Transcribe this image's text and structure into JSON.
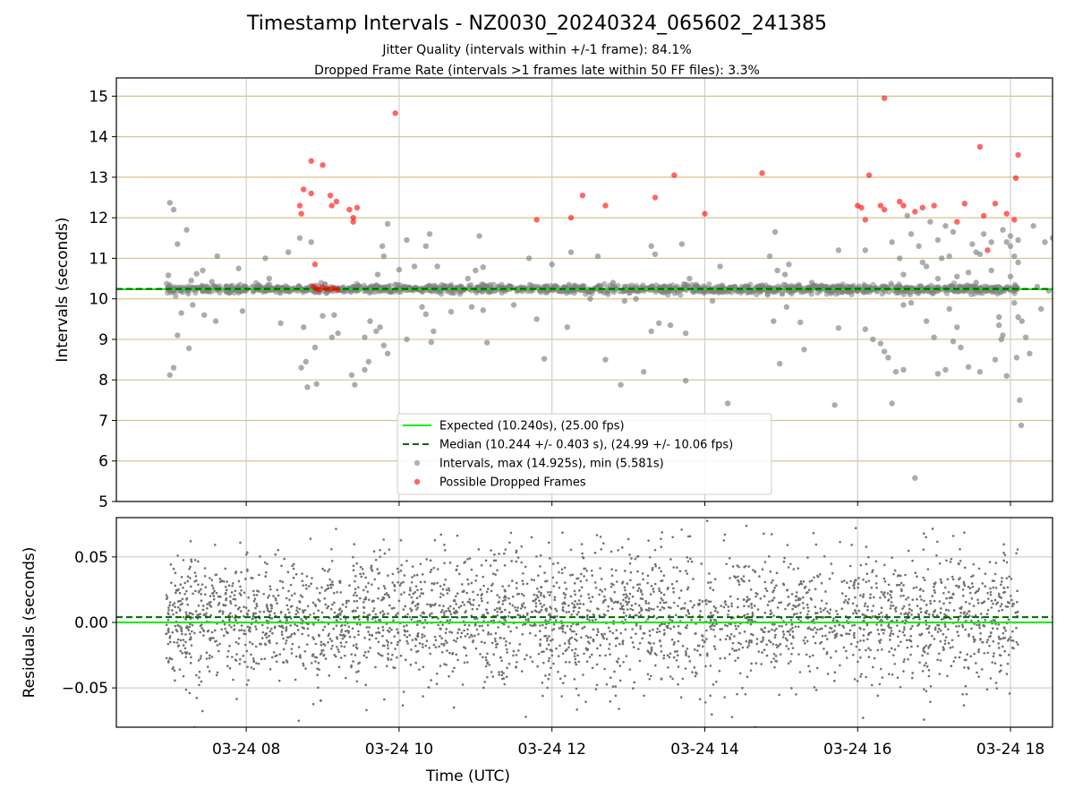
{
  "chart_data": [
    {
      "type": "scatter",
      "title": "Timestamp Intervals - NZ0030_20240324_065602_241385",
      "subtitle_lines": [
        "Jitter Quality (intervals within +/-1 frame): 84.1%",
        "Dropped Frame Rate (intervals >1 frames late within 50 FF files): 3.3%"
      ],
      "xlabel": "",
      "ylabel": "Intervals (seconds)",
      "ylim": [
        5,
        15.45
      ],
      "yticks": [
        5,
        6,
        7,
        8,
        9,
        10,
        11,
        12,
        13,
        14,
        15
      ],
      "xlim_hours": [
        6.3,
        18.55
      ],
      "xtick_hours": [
        8,
        10,
        12,
        14,
        16,
        18
      ],
      "grid": true,
      "legend": {
        "placement": "lower-center",
        "entries": [
          {
            "label": "Expected (10.240s), (25.00 fps)",
            "kind": "line",
            "color": "#00ee00"
          },
          {
            "label": "Median (10.244 +/- 0.403 s), (24.99 +/- 10.06 fps)",
            "kind": "dashed",
            "color": "#006400"
          },
          {
            "label": "Intervals, max (14.925s), min (5.581s)",
            "kind": "marker",
            "color": "#808080"
          },
          {
            "label": "Possible Dropped Frames",
            "kind": "marker",
            "color": "#ff0000"
          }
        ]
      },
      "expected": 10.24,
      "median": 10.244,
      "cluster_band": {
        "x_range_hours": [
          6.95,
          18.1
        ],
        "y": 10.24,
        "jitter": 0.05
      },
      "series": [
        {
          "name": "Intervals, max (14.925s), min (5.581s)",
          "color": "#808080",
          "points": [
            [
              7.0,
              12.37
            ],
            [
              7.05,
              12.2
            ],
            [
              6.98,
              10.58
            ],
            [
              7.1,
              11.35
            ],
            [
              7.22,
              11.7
            ],
            [
              7.28,
              10.45
            ],
            [
              7.35,
              10.62
            ],
            [
              7.43,
              10.7
            ],
            [
              7.55,
              10.42
            ],
            [
              7.62,
              11.05
            ],
            [
              7.05,
              8.3
            ],
            [
              7.0,
              8.12
            ],
            [
              7.1,
              9.1
            ],
            [
              7.15,
              9.65
            ],
            [
              7.3,
              9.85
            ],
            [
              7.45,
              9.6
            ],
            [
              7.6,
              9.45
            ],
            [
              7.25,
              8.78
            ],
            [
              7.95,
              9.7
            ],
            [
              7.9,
              10.75
            ],
            [
              8.25,
              11.0
            ],
            [
              8.3,
              10.5
            ],
            [
              8.45,
              9.4
            ],
            [
              8.55,
              11.15
            ],
            [
              8.7,
              11.5
            ],
            [
              8.75,
              9.3
            ],
            [
              8.72,
              8.3
            ],
            [
              8.78,
              8.45
            ],
            [
              8.8,
              7.82
            ],
            [
              8.85,
              11.4
            ],
            [
              8.9,
              8.8
            ],
            [
              8.92,
              7.9
            ],
            [
              9.0,
              9.58
            ],
            [
              9.12,
              9.05
            ],
            [
              9.15,
              9.6
            ],
            [
              9.2,
              9.15
            ],
            [
              9.38,
              8.12
            ],
            [
              9.42,
              7.88
            ],
            [
              9.55,
              8.25
            ],
            [
              9.6,
              8.45
            ],
            [
              9.55,
              9.05
            ],
            [
              9.62,
              9.45
            ],
            [
              9.7,
              9.2
            ],
            [
              9.75,
              9.3
            ],
            [
              9.72,
              10.6
            ],
            [
              9.8,
              11.05
            ],
            [
              9.78,
              11.3
            ],
            [
              9.85,
              11.85
            ],
            [
              9.8,
              8.85
            ],
            [
              9.85,
              8.65
            ],
            [
              9.95,
              10.35
            ],
            [
              10.0,
              10.72
            ],
            [
              10.1,
              11.45
            ],
            [
              10.2,
              10.8
            ],
            [
              10.35,
              11.3
            ],
            [
              10.4,
              11.6
            ],
            [
              10.5,
              10.8
            ],
            [
              10.1,
              9.0
            ],
            [
              10.3,
              9.8
            ],
            [
              10.35,
              9.62
            ],
            [
              10.45,
              9.2
            ],
            [
              10.42,
              8.93
            ],
            [
              10.68,
              9.68
            ],
            [
              10.9,
              10.5
            ],
            [
              10.95,
              9.8
            ],
            [
              11.0,
              10.7
            ],
            [
              11.1,
              10.78
            ],
            [
              11.1,
              9.72
            ],
            [
              11.05,
              11.55
            ],
            [
              11.15,
              8.92
            ],
            [
              11.5,
              9.85
            ],
            [
              11.7,
              11.0
            ],
            [
              11.8,
              9.5
            ],
            [
              11.9,
              8.52
            ],
            [
              12.0,
              10.85
            ],
            [
              12.15,
              10.2
            ],
            [
              12.2,
              9.3
            ],
            [
              12.25,
              11.15
            ],
            [
              12.5,
              10.0
            ],
            [
              12.6,
              11.05
            ],
            [
              12.7,
              8.5
            ],
            [
              12.8,
              10.4
            ],
            [
              12.9,
              7.88
            ],
            [
              12.95,
              9.95
            ],
            [
              13.1,
              10.0
            ],
            [
              13.2,
              8.2
            ],
            [
              13.3,
              11.3
            ],
            [
              13.35,
              11.1
            ],
            [
              13.4,
              9.4
            ],
            [
              13.55,
              9.35
            ],
            [
              13.3,
              9.2
            ],
            [
              13.7,
              11.35
            ],
            [
              13.75,
              9.15
            ],
            [
              13.75,
              7.98
            ],
            [
              13.8,
              10.5
            ],
            [
              13.9,
              10.3
            ],
            [
              14.1,
              9.95
            ],
            [
              14.2,
              10.8
            ],
            [
              14.3,
              7.42
            ],
            [
              14.85,
              11.05
            ],
            [
              14.92,
              11.65
            ],
            [
              14.95,
              10.7
            ],
            [
              14.9,
              9.45
            ],
            [
              14.98,
              8.4
            ],
            [
              15.05,
              10.6
            ],
            [
              15.07,
              9.8
            ],
            [
              15.1,
              10.85
            ],
            [
              15.25,
              9.42
            ],
            [
              15.3,
              8.75
            ],
            [
              15.4,
              10.4
            ],
            [
              15.75,
              11.2
            ],
            [
              15.75,
              9.28
            ],
            [
              15.7,
              7.38
            ],
            [
              16.1,
              11.2
            ],
            [
              16.1,
              9.25
            ],
            [
              16.6,
              10.6
            ],
            [
              16.6,
              9.85
            ],
            [
              16.9,
              10.8
            ],
            [
              17.05,
              10.5
            ],
            [
              17.1,
              11.0
            ],
            [
              17.2,
              9.75
            ],
            [
              17.3,
              10.55
            ],
            [
              17.45,
              10.65
            ],
            [
              17.55,
              10.4
            ],
            [
              16.2,
              9.0
            ],
            [
              16.3,
              8.9
            ],
            [
              16.4,
              8.55
            ],
            [
              16.5,
              8.2
            ],
            [
              16.35,
              8.7
            ],
            [
              16.45,
              7.42
            ],
            [
              16.6,
              8.25
            ],
            [
              16.7,
              9.9
            ],
            [
              16.75,
              5.58
            ],
            [
              16.85,
              10.9
            ],
            [
              16.9,
              9.45
            ],
            [
              17.0,
              9.05
            ],
            [
              17.05,
              8.15
            ],
            [
              17.15,
              8.25
            ],
            [
              17.25,
              8.95
            ],
            [
              17.3,
              9.3
            ],
            [
              17.35,
              8.8
            ],
            [
              17.45,
              8.32
            ],
            [
              17.55,
              11.15
            ],
            [
              17.6,
              8.2
            ],
            [
              17.65,
              11.6
            ],
            [
              17.75,
              10.7
            ],
            [
              17.8,
              8.5
            ],
            [
              17.85,
              9.55
            ],
            [
              17.95,
              8.1
            ],
            [
              18.0,
              11.3
            ],
            [
              18.05,
              11.05
            ],
            [
              18.1,
              10.9
            ],
            [
              18.15,
              9.45
            ],
            [
              18.2,
              9.05
            ],
            [
              18.25,
              8.65
            ],
            [
              18.3,
              11.8
            ],
            [
              18.35,
              10.3
            ],
            [
              18.4,
              9.75
            ],
            [
              18.45,
              11.4
            ],
            [
              18.5,
              10.2
            ],
            [
              18.55,
              11.5
            ],
            [
              18.6,
              9.5
            ],
            [
              18.65,
              10.6
            ],
            [
              18.7,
              9.3
            ],
            [
              18.7,
              8.95
            ],
            [
              18.75,
              8.45
            ],
            [
              18.8,
              11.05
            ],
            [
              18.82,
              10.15
            ],
            [
              16.45,
              11.4
            ],
            [
              16.55,
              11.0
            ],
            [
              16.65,
              12.05
            ],
            [
              16.7,
              11.6
            ],
            [
              16.8,
              11.3
            ],
            [
              16.95,
              11.9
            ],
            [
              17.05,
              11.45
            ],
            [
              17.15,
              11.8
            ],
            [
              17.2,
              11.05
            ],
            [
              17.25,
              11.65
            ],
            [
              17.5,
              11.35
            ],
            [
              17.6,
              11.1
            ],
            [
              17.75,
              11.4
            ],
            [
              17.9,
              11.7
            ],
            [
              18.0,
              10.55
            ],
            [
              18.05,
              9.9
            ],
            [
              18.1,
              9.55
            ],
            [
              18.12,
              7.5
            ],
            [
              18.14,
              6.88
            ],
            [
              18.08,
              8.55
            ],
            [
              18.1,
              11.45
            ],
            [
              18.0,
              11.55
            ],
            [
              17.95,
              11.4
            ],
            [
              17.9,
              9.1
            ],
            [
              17.88,
              9.0
            ],
            [
              17.85,
              9.35
            ]
          ]
        },
        {
          "name": "Possible Dropped Frames",
          "color": "#ff0000",
          "points": [
            [
              8.7,
              12.3
            ],
            [
              8.72,
              12.1
            ],
            [
              8.75,
              12.7
            ],
            [
              8.85,
              12.6
            ],
            [
              8.85,
              13.4
            ],
            [
              9.0,
              13.3
            ],
            [
              9.1,
              12.55
            ],
            [
              9.12,
              12.3
            ],
            [
              9.18,
              12.4
            ],
            [
              9.35,
              12.2
            ],
            [
              9.4,
              12.0
            ],
            [
              9.4,
              11.9
            ],
            [
              9.45,
              12.25
            ],
            [
              9.95,
              14.58
            ],
            [
              11.8,
              11.95
            ],
            [
              12.25,
              12.0
            ],
            [
              12.4,
              12.55
            ],
            [
              12.7,
              12.3
            ],
            [
              13.35,
              12.5
            ],
            [
              13.6,
              13.05
            ],
            [
              14.0,
              12.1
            ],
            [
              14.75,
              13.1
            ],
            [
              16.0,
              12.3
            ],
            [
              16.05,
              12.25
            ],
            [
              16.1,
              11.95
            ],
            [
              16.15,
              13.05
            ],
            [
              16.3,
              12.3
            ],
            [
              16.35,
              12.2
            ],
            [
              16.35,
              14.95
            ],
            [
              16.55,
              12.4
            ],
            [
              16.6,
              12.3
            ],
            [
              16.75,
              12.15
            ],
            [
              16.85,
              12.25
            ],
            [
              17.0,
              12.3
            ],
            [
              17.3,
              11.9
            ],
            [
              17.4,
              12.35
            ],
            [
              17.6,
              13.75
            ],
            [
              17.65,
              12.05
            ],
            [
              17.7,
              11.2
            ],
            [
              17.8,
              12.35
            ],
            [
              17.95,
              12.1
            ],
            [
              18.05,
              11.95
            ],
            [
              18.07,
              12.98
            ],
            [
              18.1,
              13.55
            ],
            [
              8.9,
              10.85
            ],
            [
              8.88,
              10.3
            ],
            [
              8.92,
              10.25
            ],
            [
              8.95,
              10.22
            ],
            [
              9.0,
              10.28
            ],
            [
              9.05,
              10.25
            ],
            [
              9.1,
              10.24
            ],
            [
              9.15,
              10.26
            ],
            [
              9.2,
              10.22
            ]
          ]
        }
      ]
    },
    {
      "type": "scatter",
      "xlabel": "Time (UTC)",
      "ylabel": "Residuals (seconds)",
      "ylim": [
        -0.08,
        0.08
      ],
      "yticks": [
        -0.05,
        0.0,
        0.05
      ],
      "ytick_labels": [
        "−0.05",
        "0.00",
        "0.05"
      ],
      "xlim_hours": [
        6.3,
        18.55
      ],
      "xtick_hours": [
        8,
        10,
        12,
        14,
        16,
        18
      ],
      "xtick_labels": [
        "03-24 08",
        "03-24 10",
        "03-24 12",
        "03-24 14",
        "03-24 16",
        "03-24 18"
      ],
      "grid": true,
      "expected_residual": 0.0,
      "median_residual": 0.004,
      "series": [
        {
          "name": "",
          "color": "#707070",
          "x_range_hours": [
            6.95,
            18.1
          ],
          "mean": 0.003,
          "spread": 0.025,
          "count": 3200
        }
      ]
    }
  ]
}
